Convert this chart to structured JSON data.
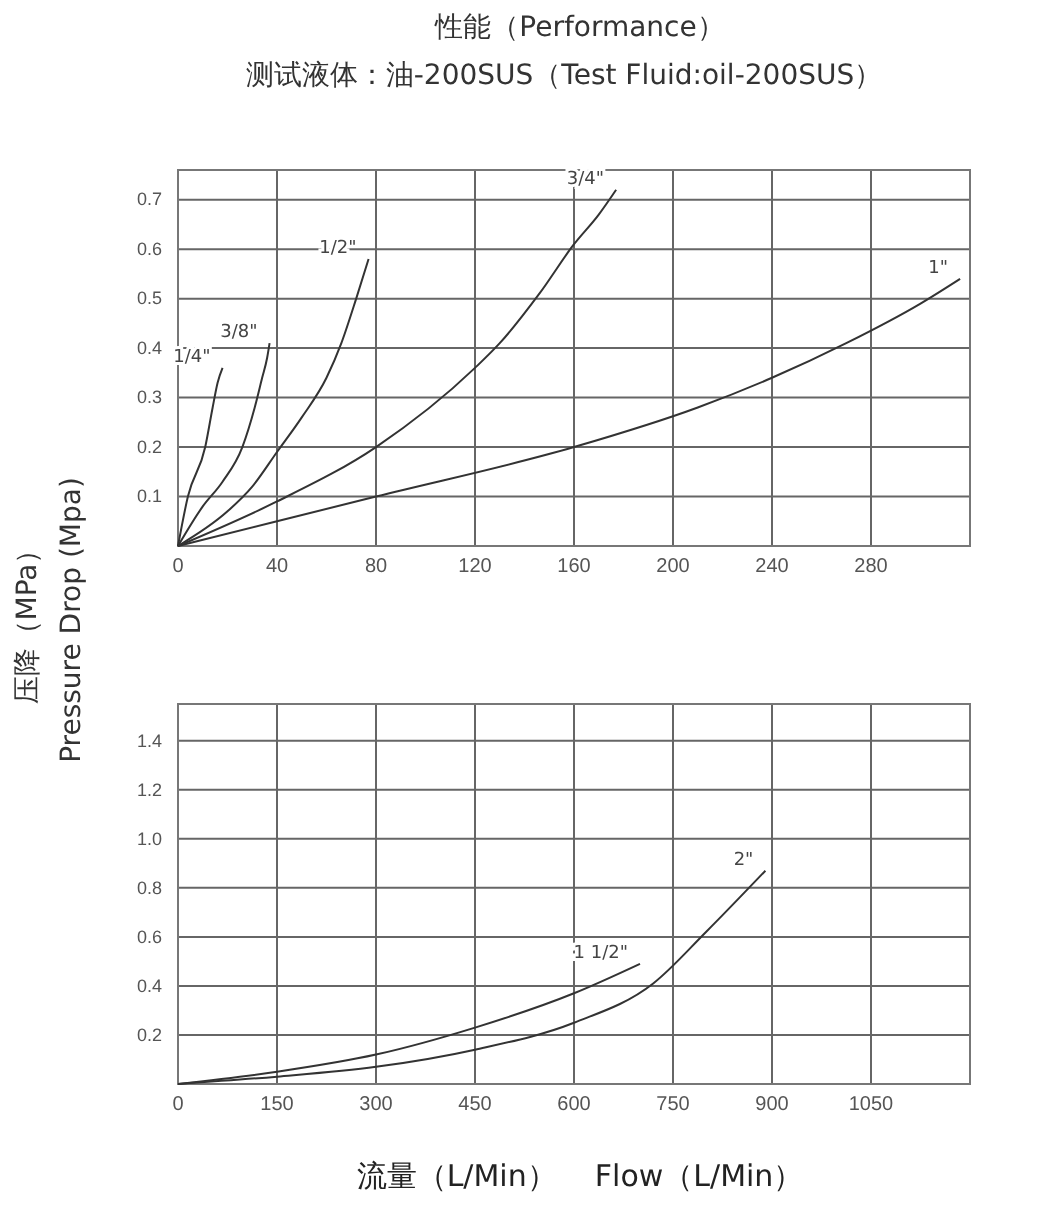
{
  "chart_data": [
    {
      "type": "line",
      "title": "性能（Performance）",
      "subtitle": "测试液体：油-200SUS（Test Fluid:oil-200SUS）",
      "ylabel": "压降（MPa）\nPressure Drop (Mpa)",
      "xlim": [
        0,
        320
      ],
      "ylim": [
        0,
        0.76
      ],
      "xticks": [
        0,
        40,
        80,
        120,
        160,
        200,
        240,
        280
      ],
      "yticks": [
        0.1,
        0.2,
        0.3,
        0.4,
        0.5,
        0.6,
        0.7
      ],
      "grid": true,
      "series": [
        {
          "name": "1/4\"",
          "color": "#333333",
          "x": [
            0,
            4,
            11,
            14,
            16,
            18
          ],
          "values": [
            0,
            0.1,
            0.2,
            0.28,
            0.33,
            0.36
          ]
        },
        {
          "name": "3/8\"",
          "color": "#333333",
          "x": [
            0,
            10,
            18,
            26,
            31,
            34,
            36,
            37
          ],
          "values": [
            0,
            0.08,
            0.13,
            0.2,
            0.28,
            0.34,
            0.38,
            0.41
          ]
        },
        {
          "name": "1/2\"",
          "color": "#333333",
          "x": [
            0,
            20,
            30,
            40,
            50,
            60,
            66,
            72,
            77
          ],
          "values": [
            0,
            0.07,
            0.12,
            0.19,
            0.26,
            0.34,
            0.41,
            0.5,
            0.58
          ]
        },
        {
          "name": "3/4\"",
          "color": "#333333",
          "x": [
            0,
            40,
            80,
            120,
            130,
            146,
            160,
            170,
            177
          ],
          "values": [
            0,
            0.09,
            0.2,
            0.36,
            0.41,
            0.51,
            0.61,
            0.67,
            0.72
          ]
        },
        {
          "name": "1\"",
          "color": "#333333",
          "x": [
            0,
            80,
            160,
            210,
            240,
            270,
            300,
            316
          ],
          "values": [
            0,
            0.1,
            0.2,
            0.28,
            0.34,
            0.41,
            0.49,
            0.54
          ]
        }
      ]
    },
    {
      "type": "line",
      "xlabel": "流量（L/Min）    Flow（L/Min）",
      "xlim": [
        0,
        1200
      ],
      "ylim": [
        0,
        1.55
      ],
      "xticks": [
        0,
        150,
        300,
        450,
        600,
        750,
        900,
        1050
      ],
      "yticks": [
        0.2,
        0.4,
        0.6,
        0.8,
        {
          "value": 1.0,
          "label": "1.0"
        },
        1.2,
        1.4
      ],
      "grid": true,
      "series": [
        {
          "name": "1 1/2\"",
          "color": "#333333",
          "x": [
            0,
            150,
            300,
            450,
            600,
            700
          ],
          "values": [
            0,
            0.05,
            0.12,
            0.23,
            0.37,
            0.49
          ]
        },
        {
          "name": "2\"",
          "color": "#333333",
          "x": [
            0,
            150,
            300,
            450,
            600,
            720,
            800,
            890
          ],
          "values": [
            0,
            0.03,
            0.07,
            0.14,
            0.25,
            0.41,
            0.62,
            0.87
          ]
        }
      ]
    }
  ]
}
